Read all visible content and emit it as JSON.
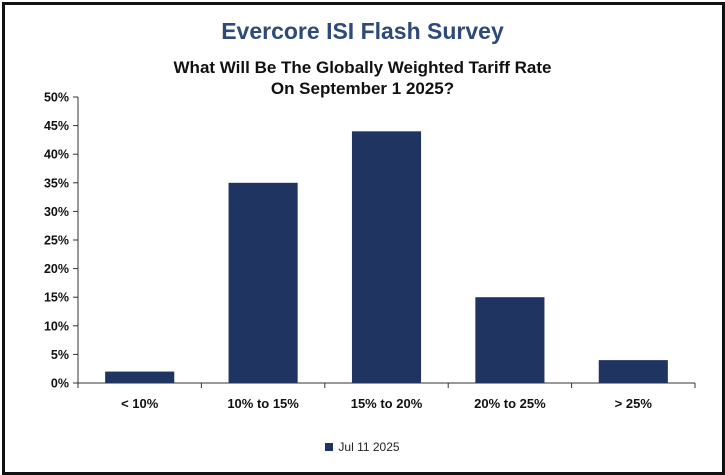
{
  "chart_data": {
    "type": "bar",
    "title": "Evercore ISI Flash Survey",
    "subtitle": [
      "What Will Be The Globally Weighted Tariff Rate",
      "On September 1 2025?"
    ],
    "categories": [
      "< 10%",
      "10% to 15%",
      "15% to 20%",
      "20% to 25%",
      "> 25%"
    ],
    "series": [
      {
        "name": "Jul 11 2025",
        "values": [
          2,
          35,
          44,
          15,
          4
        ]
      }
    ],
    "ylim": [
      0,
      50
    ],
    "yticks": [
      "0%",
      "5%",
      "10%",
      "15%",
      "20%",
      "25%",
      "30%",
      "35%",
      "40%",
      "45%",
      "50%"
    ],
    "xlabel": "",
    "ylabel": "",
    "grid": false,
    "legend_position": "bottom-center",
    "colors": {
      "bar": "#1f3461",
      "title": "#2d4a7a",
      "axis": "#333333"
    }
  }
}
